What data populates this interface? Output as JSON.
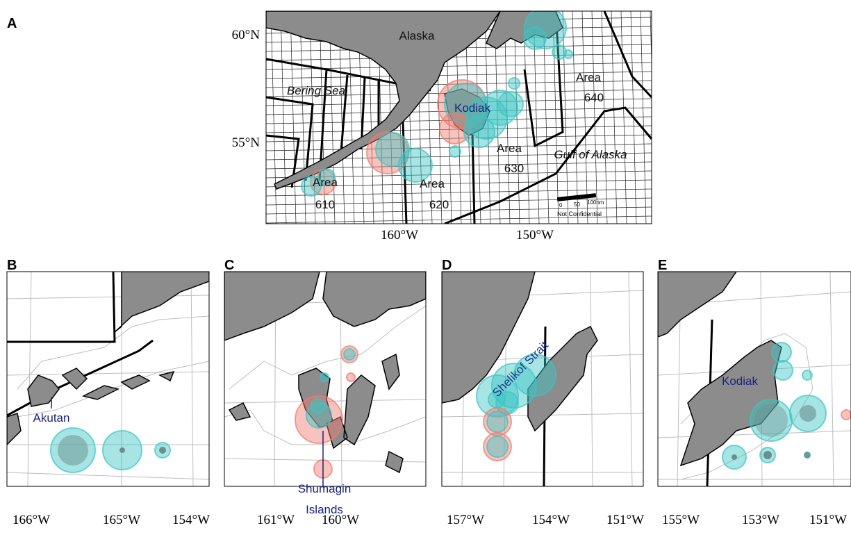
{
  "panels": [
    {
      "letter": "A",
      "lat_labels": [
        "60°N",
        "55°N"
      ],
      "lon_labels": [
        "160°W",
        "150°W"
      ],
      "places": [
        "Alaska",
        "Bering Sea",
        "Kodiak",
        "Gulf of Alaska"
      ],
      "areas": [
        {
          "label": "Area",
          "number": "610"
        },
        {
          "label": "Area",
          "number": "620"
        },
        {
          "label": "Area",
          "number": "630"
        },
        {
          "label": "Area",
          "number": "640"
        }
      ],
      "scale_bar": {
        "ticks": [
          "0",
          "50",
          "100nm"
        ],
        "note": "Not Confidential"
      }
    },
    {
      "letter": "B",
      "lon_labels": [
        "166°W",
        "165°W",
        "154°W"
      ],
      "places": [
        "Akutan"
      ]
    },
    {
      "letter": "C",
      "lon_labels": [
        "161°W",
        "160°W"
      ],
      "places": [
        "Shumagin",
        "Islands"
      ]
    },
    {
      "letter": "D",
      "lon_labels": [
        "157°W",
        "154°W",
        "151°W"
      ],
      "places": [
        "Shelikof Strait"
      ]
    },
    {
      "letter": "E",
      "lon_labels": [
        "155°W",
        "153°W",
        "151°W"
      ],
      "places": [
        "Kodiak"
      ]
    }
  ]
}
